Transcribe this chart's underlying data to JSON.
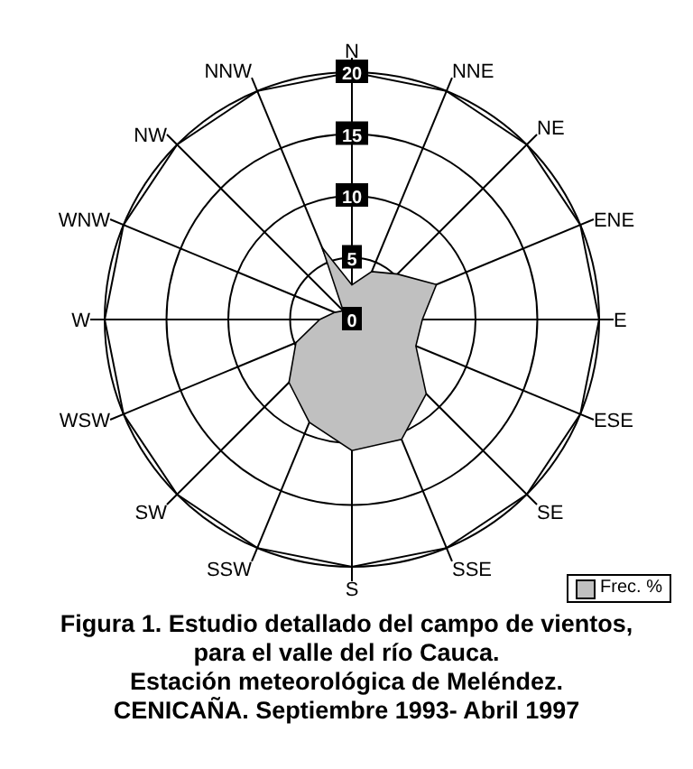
{
  "chart_data": {
    "type": "radar",
    "title": "Figura 1. Estudio detallado del campo de vientos, para el valle del río Cauca.",
    "subtitle": "Estación meteorológica de Meléndez. CENICAÑA. Septiembre 1993- Abril 1997",
    "categories": [
      "N",
      "NNE",
      "NE",
      "ENE",
      "E",
      "ESE",
      "SE",
      "SSE",
      "S",
      "SSW",
      "SW",
      "WSW",
      "W",
      "WNW",
      "NW",
      "NNW"
    ],
    "series": [
      {
        "name": "Frec. %",
        "color": "#c0c0c0",
        "values": [
          2.8,
          4.2,
          5.2,
          7.4,
          5.7,
          5.6,
          8.5,
          10.5,
          10.6,
          9.0,
          7.2,
          4.9,
          2.6,
          1.5,
          1.0,
          6.3
        ]
      }
    ],
    "ylim": [
      0,
      20
    ],
    "yticks": [
      0,
      5,
      10,
      15,
      20
    ],
    "legend": "bottom right"
  }
}
